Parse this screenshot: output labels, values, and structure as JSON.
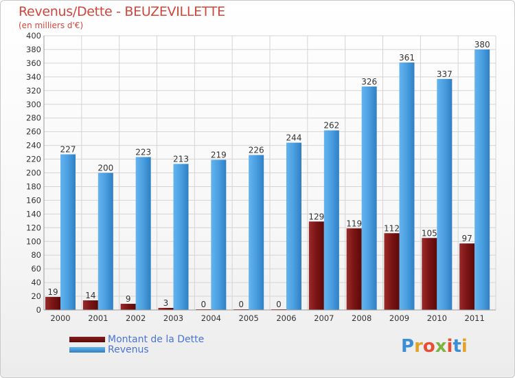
{
  "header": {
    "title": "Revenus/Dette - BEUZEVILLETTE",
    "subtitle": "(en milliers d'€)"
  },
  "logo": {
    "text": "Proxiti",
    "colors": [
      "#3b8ed6",
      "#e2a32a",
      "#e94e35",
      "#7cb342",
      "#e94e35",
      "#3b8ed6",
      "#e2a32a"
    ]
  },
  "colors": {
    "debt": "#7a1414",
    "revenue": "#4a9fe0",
    "grid": "#d4d4d4",
    "axis_text": "#333333",
    "title": "#d2453a"
  },
  "chart_data": {
    "type": "bar",
    "title": "Revenus/Dette - BEUZEVILLETTE",
    "ylabel": "(en milliers d'€)",
    "categories": [
      "2000",
      "2001",
      "2002",
      "2003",
      "2004",
      "2005",
      "2006",
      "2007",
      "2008",
      "2009",
      "2010",
      "2011"
    ],
    "series": [
      {
        "name": "Montant de la Dette",
        "values": [
          19,
          14,
          9,
          3,
          0,
          0,
          0,
          129,
          119,
          112,
          105,
          97
        ]
      },
      {
        "name": "Revenus",
        "values": [
          227,
          200,
          223,
          213,
          219,
          226,
          244,
          262,
          326,
          361,
          337,
          380
        ]
      }
    ],
    "ylim": [
      0,
      400
    ],
    "yticks": [
      0,
      20,
      40,
      60,
      80,
      100,
      120,
      140,
      160,
      180,
      200,
      220,
      240,
      260,
      280,
      300,
      320,
      340,
      360,
      380,
      400
    ],
    "grid": true,
    "legend": "bottom-left"
  }
}
